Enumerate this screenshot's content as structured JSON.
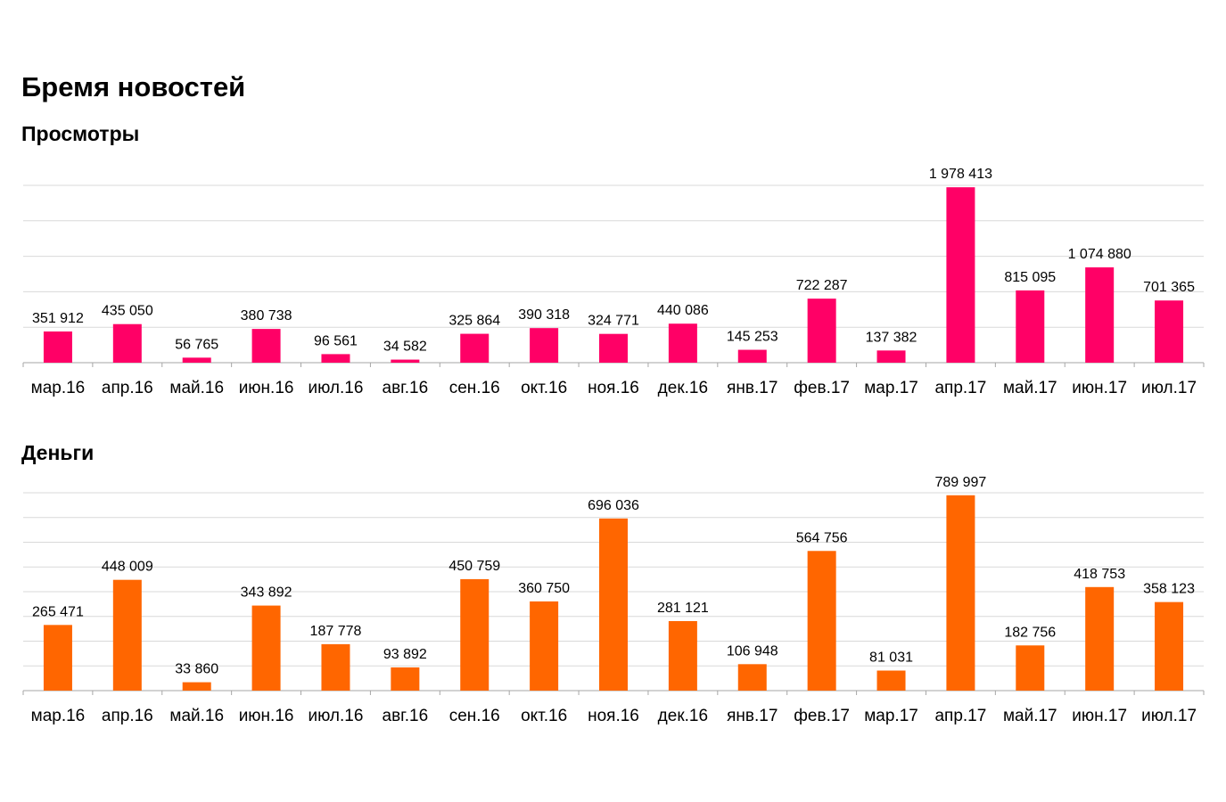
{
  "title": "Бремя новостей",
  "chart_data": [
    {
      "type": "bar",
      "title": "Просмотры",
      "color": "#ff0066",
      "categories": [
        "мар.16",
        "апр.16",
        "май.16",
        "июн.16",
        "июл.16",
        "авг.16",
        "сен.16",
        "окт.16",
        "ноя.16",
        "дек.16",
        "янв.17",
        "фев.17",
        "мар.17",
        "апр.17",
        "май.17",
        "июн.17",
        "июл.17"
      ],
      "values": [
        351912,
        435050,
        56765,
        380738,
        96561,
        34582,
        325864,
        390318,
        324771,
        440086,
        145253,
        722287,
        137382,
        1978413,
        815095,
        1074880,
        701365
      ],
      "labels": [
        "351 912",
        "435 050",
        "56 765",
        "380 738",
        "96 561",
        "34 582",
        "325 864",
        "390 318",
        "324 771",
        "440 086",
        "145 253",
        "722 287",
        "137 382",
        "1 978 413",
        "815 095",
        "1 074 880",
        "701 365"
      ],
      "ylim": [
        0,
        2000000
      ],
      "grid": true
    },
    {
      "type": "bar",
      "title": "Деньги",
      "color": "#ff6600",
      "categories": [
        "мар.16",
        "апр.16",
        "май.16",
        "июн.16",
        "июл.16",
        "авг.16",
        "сен.16",
        "окт.16",
        "ноя.16",
        "дек.16",
        "янв.17",
        "фев.17",
        "мар.17",
        "апр.17",
        "май.17",
        "июн.17",
        "июл.17"
      ],
      "values": [
        265471,
        448009,
        33860,
        343892,
        187778,
        93892,
        450759,
        360750,
        696036,
        281121,
        106948,
        564756,
        81031,
        789997,
        182756,
        418753,
        358123
      ],
      "labels": [
        "265 471",
        "448 009",
        "33 860",
        "343 892",
        "187 778",
        "93 892",
        "450 759",
        "360 750",
        "696 036",
        "281 121",
        "106 948",
        "564 756",
        "81 031",
        "789 997",
        "182 756",
        "418 753",
        "358 123"
      ],
      "ylim": [
        0,
        800000
      ],
      "grid": true
    }
  ]
}
